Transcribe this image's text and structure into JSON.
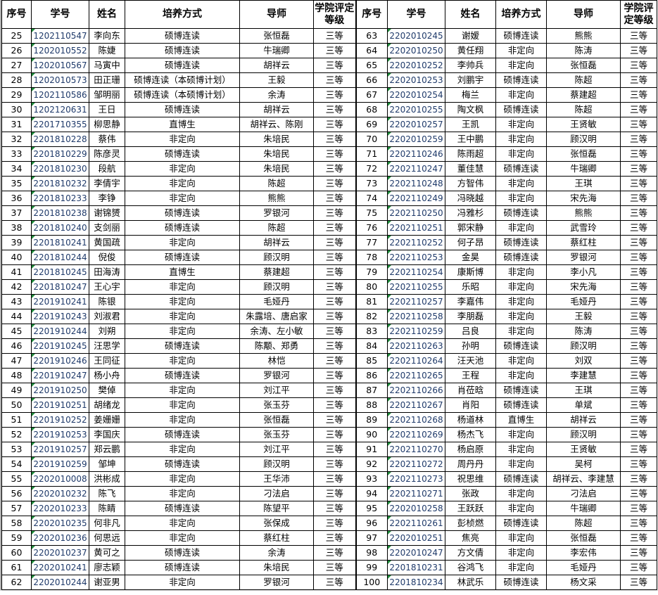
{
  "headers": [
    "序号",
    "学号",
    "姓名",
    "培养方式",
    "导师",
    "学院评定等级"
  ],
  "left_rows": [
    [
      "25",
      "1202110547",
      "李向东",
      "硕博连读",
      "张恒磊",
      "三等"
    ],
    [
      "26",
      "1202010552",
      "陈婕",
      "硕博连读",
      "牛瑞卿",
      "三等"
    ],
    [
      "27",
      "1202010567",
      "马寅中",
      "硕博连读",
      "胡祥云",
      "三等"
    ],
    [
      "28",
      "1202010573",
      "田正珊",
      "硕博连读（本硕博计划）",
      "王毅",
      "三等"
    ],
    [
      "29",
      "1202110586",
      "邹明丽",
      "硕博连读（本硕博计划）",
      "余涛",
      "三等"
    ],
    [
      "30",
      "1202120631",
      "王日",
      "硕博连读",
      "胡祥云",
      "三等"
    ],
    [
      "31",
      "2201710355",
      "柳思静",
      "直博生",
      "胡祥云、陈刚",
      "三等"
    ],
    [
      "32",
      "2201810228",
      "蔡伟",
      "非定向",
      "朱培民",
      "三等"
    ],
    [
      "33",
      "2201810229",
      "陈彦灵",
      "硕博连读",
      "朱培民",
      "三等"
    ],
    [
      "34",
      "2201810230",
      "段航",
      "非定向",
      "朱培民",
      "三等"
    ],
    [
      "35",
      "2201810232",
      "李倩宇",
      "非定向",
      "陈超",
      "三等"
    ],
    [
      "36",
      "2201810233",
      "李铮",
      "非定向",
      "熊熊",
      "三等"
    ],
    [
      "37",
      "2201810238",
      "谢锦赟",
      "硕博连读",
      "罗银河",
      "三等"
    ],
    [
      "38",
      "2201810240",
      "支剑丽",
      "硕博连读",
      "陈超",
      "三等"
    ],
    [
      "39",
      "2201810241",
      "黄国疏",
      "非定向",
      "胡祥云",
      "三等"
    ],
    [
      "40",
      "2201810244",
      "倪俊",
      "硕博连读",
      "顾汉明",
      "三等"
    ],
    [
      "41",
      "2201810245",
      "田海涛",
      "直博生",
      "蔡建超",
      "三等"
    ],
    [
      "42",
      "2201810247",
      "王心宇",
      "非定向",
      "顾汉明",
      "三等"
    ],
    [
      "43",
      "2201910241",
      "陈银",
      "非定向",
      "毛娅丹",
      "三等"
    ],
    [
      "44",
      "2201910243",
      "刘淑君",
      "非定向",
      "朱露培、唐启家",
      "三等"
    ],
    [
      "45",
      "2201910244",
      "刘朔",
      "非定向",
      "余涛、左小敏",
      "三等"
    ],
    [
      "46",
      "2201910245",
      "汪思学",
      "硕博连读",
      "陈颙、郑勇",
      "三等"
    ],
    [
      "47",
      "2201910246",
      "王同征",
      "非定向",
      "林恺",
      "三等"
    ],
    [
      "48",
      "2201910247",
      "杨小舟",
      "硕博连读",
      "罗银河",
      "三等"
    ],
    [
      "49",
      "2201910250",
      "樊倬",
      "非定向",
      "刘江平",
      "三等"
    ],
    [
      "50",
      "2201910251",
      "胡绪龙",
      "非定向",
      "张玉芬",
      "三等"
    ],
    [
      "51",
      "2201910252",
      "姜姗姗",
      "非定向",
      "张恒磊",
      "三等"
    ],
    [
      "52",
      "2201910253",
      "李国庆",
      "硕博连读",
      "张玉芬",
      "三等"
    ],
    [
      "53",
      "2201910257",
      "郑云鹏",
      "非定向",
      "刘江平",
      "三等"
    ],
    [
      "54",
      "2201910259",
      "邹坤",
      "硕博连读",
      "顾汉明",
      "三等"
    ],
    [
      "55",
      "2202010008",
      "洪彬成",
      "非定向",
      "王华沛",
      "三等"
    ],
    [
      "56",
      "2202010232",
      "陈飞",
      "非定向",
      "刁法启",
      "三等"
    ],
    [
      "57",
      "2202010233",
      "陈睛",
      "硕博连读",
      "陈望平",
      "三等"
    ],
    [
      "58",
      "2202010235",
      "何非凡",
      "非定向",
      "张保成",
      "三等"
    ],
    [
      "59",
      "2202010236",
      "何思远",
      "非定向",
      "蔡红柱",
      "三等"
    ],
    [
      "60",
      "2202010237",
      "黄可之",
      "硕博连读",
      "余涛",
      "三等"
    ],
    [
      "61",
      "2202010241",
      "廖志颖",
      "硕博连读",
      "朱培民",
      "三等"
    ],
    [
      "62",
      "2202010244",
      "谢亚男",
      "非定向",
      "罗银河",
      "三等"
    ]
  ],
  "right_rows": [
    [
      "63",
      "2202010245",
      "谢嫒",
      "硕博连读",
      "熊熊",
      "三等"
    ],
    [
      "64",
      "2202010250",
      "黄任翔",
      "非定向",
      "陈涛",
      "三等"
    ],
    [
      "65",
      "2202010252",
      "李帅兵",
      "非定向",
      "张恒磊",
      "三等"
    ],
    [
      "66",
      "2202010253",
      "刘鹏宇",
      "硕博连读",
      "陈超",
      "三等"
    ],
    [
      "67",
      "2202010254",
      "梅兰",
      "非定向",
      "蔡建超",
      "三等"
    ],
    [
      "68",
      "2202010255",
      "陶文枫",
      "硕博连读",
      "陈超",
      "三等"
    ],
    [
      "69",
      "2202010257",
      "王凯",
      "非定向",
      "王贤敏",
      "三等"
    ],
    [
      "70",
      "2202010259",
      "王中鹏",
      "非定向",
      "顾汉明",
      "三等"
    ],
    [
      "71",
      "2202110246",
      "陈雨超",
      "非定向",
      "张恒磊",
      "三等"
    ],
    [
      "72",
      "2202110247",
      "董佳慧",
      "硕博连读",
      "牛瑞卿",
      "三等"
    ],
    [
      "73",
      "2202110248",
      "方智伟",
      "非定向",
      "王琪",
      "三等"
    ],
    [
      "74",
      "2202110249",
      "冯晓越",
      "非定向",
      "宋先海",
      "三等"
    ],
    [
      "75",
      "2202110250",
      "冯雅杉",
      "硕博连读",
      "熊熊",
      "三等"
    ],
    [
      "76",
      "2202110251",
      "郭宋静",
      "非定向",
      "武雪玲",
      "三等"
    ],
    [
      "77",
      "2202110252",
      "何子昂",
      "硕博连读",
      "蔡红柱",
      "三等"
    ],
    [
      "78",
      "2202110253",
      "金昊",
      "硕博连读",
      "罗银河",
      "三等"
    ],
    [
      "79",
      "2202110254",
      "康斯博",
      "非定向",
      "李小凡",
      "三等"
    ],
    [
      "80",
      "2202110255",
      "乐昭",
      "非定向",
      "宋先海",
      "三等"
    ],
    [
      "81",
      "2202110257",
      "李嘉伟",
      "非定向",
      "毛娅丹",
      "三等"
    ],
    [
      "82",
      "2202110258",
      "李朋磊",
      "非定向",
      "王毅",
      "三等"
    ],
    [
      "83",
      "2202110259",
      "吕良",
      "非定向",
      "陈涛",
      "三等"
    ],
    [
      "84",
      "2202110263",
      "孙明",
      "硕博连读",
      "顾汉明",
      "三等"
    ],
    [
      "85",
      "2202110264",
      "汪天池",
      "非定向",
      "刘双",
      "三等"
    ],
    [
      "86",
      "2202110265",
      "王程",
      "非定向",
      "李建慧",
      "三等"
    ],
    [
      "87",
      "2202110266",
      "肖莅晗",
      "硕博连读",
      "王琪",
      "三等"
    ],
    [
      "88",
      "2202110267",
      "肖阳",
      "硕博连读",
      "单斌",
      "三等"
    ],
    [
      "89",
      "2202110268",
      "杨道林",
      "直博生",
      "胡祥云",
      "三等"
    ],
    [
      "90",
      "2202110269",
      "杨杰飞",
      "非定向",
      "顾汉明",
      "三等"
    ],
    [
      "91",
      "2202110270",
      "杨启原",
      "非定向",
      "王贤敏",
      "三等"
    ],
    [
      "92",
      "2202110272",
      "周丹丹",
      "非定向",
      "吴柯",
      "三等"
    ],
    [
      "93",
      "2202110273",
      "祝思维",
      "硕博连读",
      "胡祥云、李建慧",
      "三等"
    ],
    [
      "94",
      "2202110271",
      "张政",
      "非定向",
      "刁法启",
      "三等"
    ],
    [
      "95",
      "2202010258",
      "王跃跃",
      "非定向",
      "牛瑞卿",
      "三等"
    ],
    [
      "96",
      "2202110261",
      "彭桢燃",
      "硕博连读",
      "陈超",
      "三等"
    ],
    [
      "97",
      "2202010251",
      "焦亮",
      "非定向",
      "张恒磊",
      "三等"
    ],
    [
      "98",
      "2202010247",
      "方文倩",
      "非定向",
      "李宏伟",
      "三等"
    ],
    [
      "99",
      "2201810231",
      "谷鸿飞",
      "非定向",
      "毛娅丹",
      "三等"
    ],
    [
      "100",
      "2201810234",
      "林武乐",
      "硕博连读",
      "杨文采",
      "三等"
    ]
  ],
  "colors": {
    "id_text": "#1f3a6a",
    "cell_marker": "#1e8c3a",
    "grid": "#000000"
  }
}
